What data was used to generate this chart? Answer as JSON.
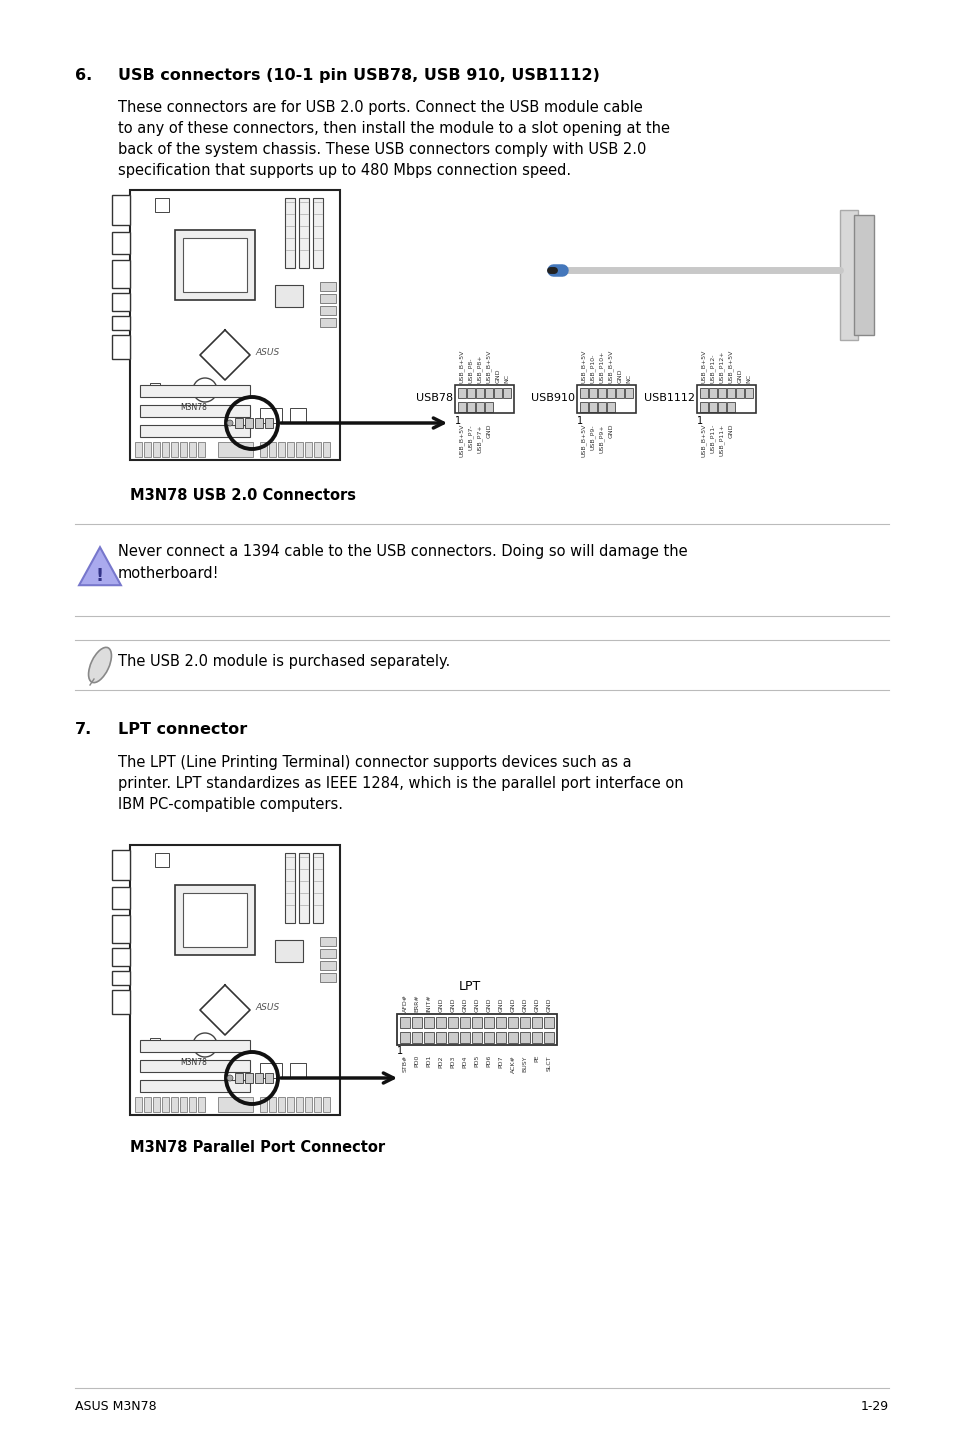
{
  "bg_color": "#ffffff",
  "text_color": "#000000",
  "section6_num": "6.",
  "section6_title": "USB connectors (10-1 pin USB78, USB 910, USB1112)",
  "section6_body_lines": [
    "These connectors are for USB 2.0 ports. Connect the USB module cable",
    "to any of these connectors, then install the module to a slot opening at the",
    "back of the system chassis. These USB connectors comply with USB 2.0",
    "specification that supports up to 480 Mbps connection speed."
  ],
  "usb_caption": "M3N78 USB 2.0 Connectors",
  "warning_text_lines": [
    "Never connect a 1394 cable to the USB connectors. Doing so will damage the",
    "motherboard!"
  ],
  "note_text": "The USB 2.0 module is purchased separately.",
  "section7_num": "7.",
  "section7_title": "LPT connector",
  "section7_body_lines": [
    "The LPT (Line Printing Terminal) connector supports devices such as a",
    "printer. LPT standardizes as IEEE 1284, which is the parallel port interface on",
    "IBM PC-compatible computers."
  ],
  "lpt_caption": "M3N78 Parallel Port Connector",
  "footer_left": "ASUS M3N78",
  "footer_right": "1-29",
  "usb78_top_labels": [
    "USB_B+5V",
    "USB_P8-",
    "USB_P8+",
    "USB_B+5V",
    "GND",
    "NC"
  ],
  "usb78_bot_labels": [
    "USB_B+5V",
    "USB_P7-",
    "USB_P7+",
    "GND"
  ],
  "usb910_top_labels": [
    "USB_B+5V",
    "USB_P10-",
    "USB_P10+",
    "USB_B+5V",
    "GND",
    "NC"
  ],
  "usb910_bot_labels": [
    "USB_B+5V",
    "USB_P9-",
    "USB_P9+",
    "GND"
  ],
  "usb1112_top_labels": [
    "USB_B+5V",
    "USB_P12-",
    "USB_P12+",
    "USB_B+5V",
    "GND",
    "NC"
  ],
  "usb1112_bot_labels": [
    "USB_B+5V",
    "USB_P11-",
    "USB_P11+",
    "GND"
  ],
  "lpt_top_labels": [
    "AFD#",
    "ERR#",
    "INIT#",
    "GND",
    "GND",
    "GND",
    "GND",
    "GND",
    "GND",
    "GND",
    "GND",
    "GND",
    "GND"
  ],
  "lpt_bot_labels": [
    "STB#",
    "PD0",
    "PD1",
    "PD2",
    "PD3",
    "PD4",
    "PD5",
    "PD6",
    "PD7",
    "ACK#",
    "BUSY",
    "PE",
    "SLCT"
  ]
}
